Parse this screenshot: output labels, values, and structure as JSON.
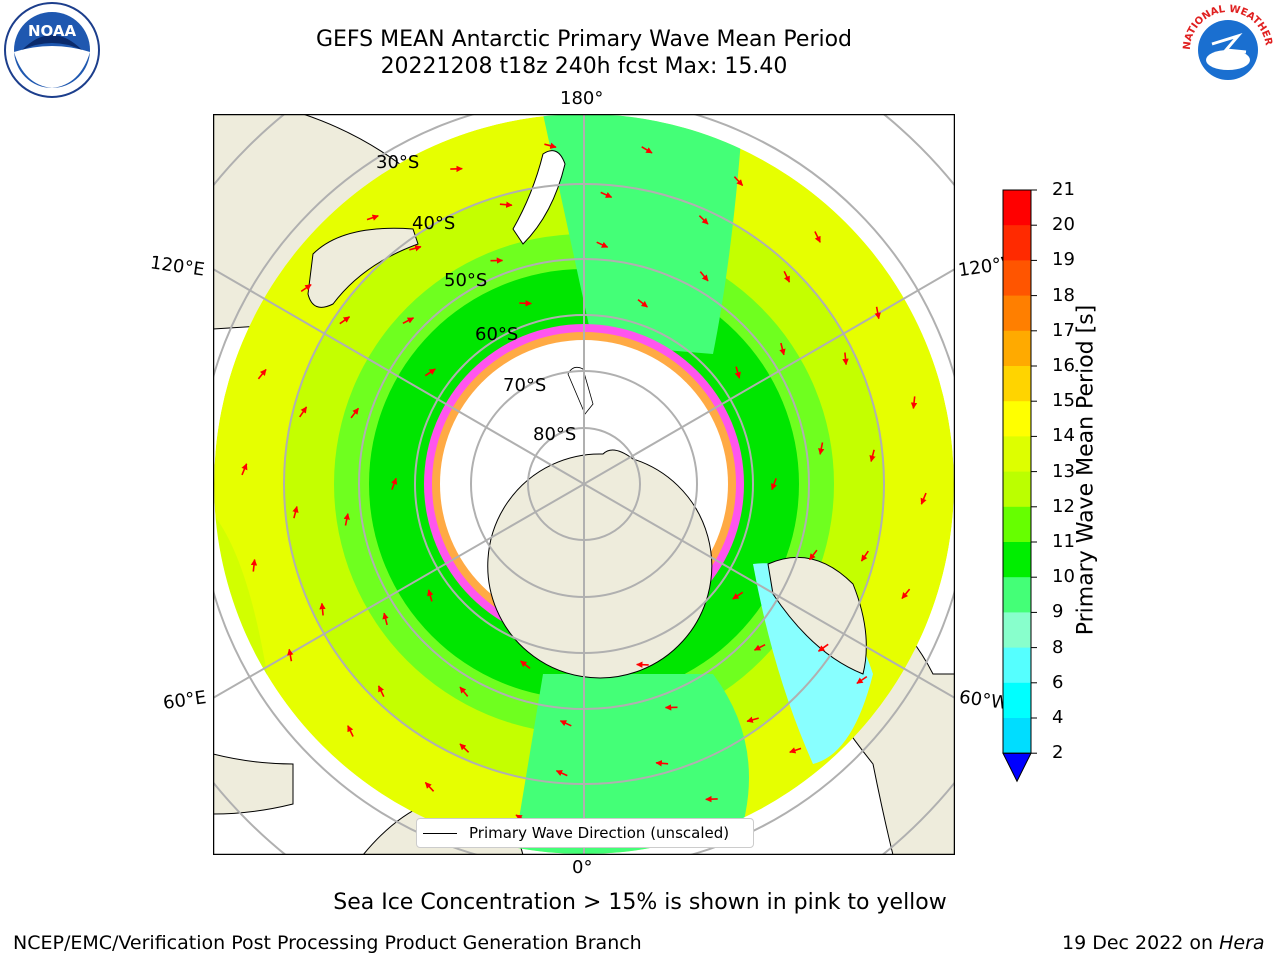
{
  "title_line1": "GEFS MEAN Antarctic Primary Wave Mean Period",
  "title_line2": "20221208 t18z 240h fcst   Max: 15.40",
  "lon_labels": {
    "top": "180°",
    "bottom": "0°",
    "left_upper": "120°E",
    "right_upper": "120°W",
    "left_lower": "60°E",
    "right_lower": "60°W"
  },
  "lat_labels": [
    "30°S",
    "40°S",
    "50°S",
    "60°S",
    "70°S",
    "80°S"
  ],
  "colorbar": {
    "label": "Primary Wave Mean Period [s]",
    "ticks": [
      "21",
      "20",
      "19",
      "18",
      "17",
      "16",
      "15",
      "14",
      "13",
      "12",
      "11",
      "10",
      "9",
      "8",
      "6",
      "4",
      "2"
    ],
    "colors": [
      "#ff0000",
      "#ff2a00",
      "#ff5500",
      "#ff7f00",
      "#ffaa00",
      "#ffd400",
      "#ffff00",
      "#ddff00",
      "#bbff00",
      "#66ff00",
      "#00ee00",
      "#44ff77",
      "#88ffcc",
      "#55ffff",
      "#00ffff",
      "#00ddff",
      "#0066ff"
    ],
    "extend_color": "#0000ff"
  },
  "legend": {
    "label": "Primary Wave Direction (unscaled)"
  },
  "note": "Sea Ice Concentration > 15% is shown in pink to yellow",
  "footer_left": "NCEP/EMC/Verification Post Processing Product Generation Branch",
  "footer_date": "19 Dec 2022 on ",
  "footer_host": "Hera",
  "logos": {
    "left": "NOAA",
    "right": "NATIONAL WEATHER SERVICE"
  }
}
